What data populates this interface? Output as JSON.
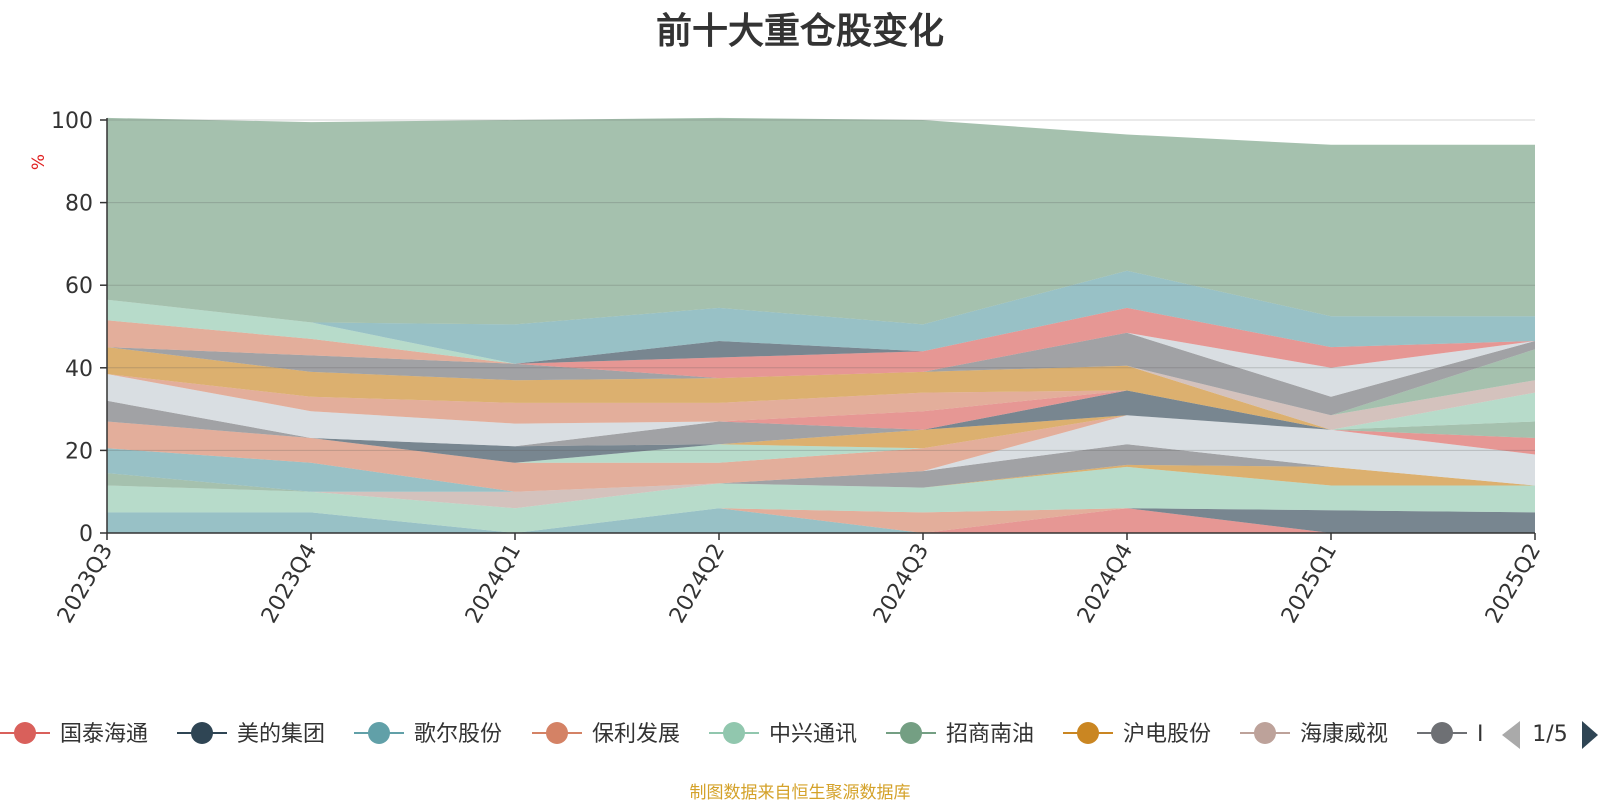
{
  "chart_data": {
    "type": "area",
    "stacked": true,
    "title": "前十大重仓股变化",
    "ylabel": "%",
    "ylim": [
      0,
      100
    ],
    "yticks": [
      0,
      20,
      40,
      60,
      80,
      100
    ],
    "grid": true,
    "legend_position": "bottom",
    "categories": [
      "2023Q3",
      "2023Q4",
      "2024Q1",
      "2024Q2",
      "2024Q3",
      "2024Q4",
      "2025Q1",
      "2025Q2"
    ],
    "series": [
      {
        "name": "国泰海通",
        "color": "#d9605b",
        "values": [
          0,
          0,
          0,
          0,
          0,
          6,
          0,
          0
        ]
      },
      {
        "name": "美的集团",
        "color": "#2f4554",
        "values": [
          0,
          0,
          0,
          0,
          0,
          0,
          5.5,
          5
        ]
      },
      {
        "name": "歌尔股份",
        "color": "#61a0a8",
        "values": [
          5,
          5,
          0,
          6,
          0,
          0,
          0,
          0
        ]
      },
      {
        "name": "保利发展",
        "color": "#d48265",
        "values": [
          0,
          0,
          0,
          0,
          5,
          0,
          0,
          0
        ]
      },
      {
        "name": "中兴通讯",
        "color": "#91c7ae",
        "values": [
          6.5,
          5,
          6,
          6,
          6,
          10,
          6,
          6.5
        ]
      },
      {
        "name": "招商南油",
        "color": "#749f83",
        "values": [
          3,
          0,
          0,
          0,
          0,
          0,
          0,
          0
        ]
      },
      {
        "name": "沪电股份",
        "color": "#ca8622",
        "values": [
          0,
          0,
          0,
          0,
          0,
          0.5,
          4.5,
          0
        ]
      },
      {
        "name": "海康威视",
        "color": "#bda29a",
        "values": [
          0,
          0,
          4,
          0,
          0,
          0,
          0,
          0
        ]
      },
      {
        "name": "",
        "color": "#6e7074",
        "values": [
          0,
          0,
          0,
          0,
          4,
          5,
          0,
          0
        ]
      },
      {
        "name": "",
        "color": "#546570",
        "values": [
          0,
          0,
          0,
          0,
          0,
          0,
          0,
          0
        ]
      },
      {
        "name": "",
        "color": "#c4ccd3",
        "values": [
          0,
          0,
          0,
          0,
          0,
          7,
          9,
          7.5
        ]
      },
      {
        "name": "",
        "color": "#61a0a8",
        "values": [
          6,
          7,
          0,
          0,
          0,
          0,
          0,
          0
        ]
      },
      {
        "name": "",
        "color": "#d48265",
        "values": [
          6.5,
          6,
          7,
          5,
          5.5,
          0,
          0,
          0
        ]
      },
      {
        "name": "",
        "color": "#91c7ae",
        "values": [
          0,
          0,
          0,
          4.5,
          0,
          0,
          0,
          0
        ]
      },
      {
        "name": "",
        "color": "#ca8622",
        "values": [
          0,
          0,
          0,
          0,
          4.5,
          0,
          0,
          0
        ]
      },
      {
        "name": "",
        "color": "#2f4554",
        "values": [
          0,
          0,
          4,
          0,
          0,
          6,
          0,
          0
        ]
      },
      {
        "name": "",
        "color": "#6e7074",
        "values": [
          5,
          0,
          0,
          5.5,
          0,
          0,
          0,
          0
        ]
      },
      {
        "name": "",
        "color": "#d9605b",
        "values": [
          0,
          0,
          0,
          0,
          4.5,
          0,
          0,
          4
        ]
      },
      {
        "name": "",
        "color": "#749f83",
        "values": [
          0,
          0,
          0,
          0,
          0,
          0,
          0,
          4
        ]
      },
      {
        "name": "",
        "color": "#91c7ae",
        "values": [
          0,
          0,
          0,
          0,
          0,
          0,
          0,
          7
        ]
      },
      {
        "name": "",
        "color": "#c4ccd3",
        "values": [
          6.5,
          6.5,
          5.5,
          0,
          0,
          0,
          0,
          0
        ]
      },
      {
        "name": "",
        "color": "#d48265",
        "values": [
          0,
          3.5,
          5,
          4.5,
          4.5,
          0,
          0,
          0
        ]
      },
      {
        "name": "",
        "color": "#ca8622",
        "values": [
          6.5,
          6,
          5.5,
          6,
          5,
          6,
          0,
          0
        ]
      },
      {
        "name": "",
        "color": "#bda29a",
        "values": [
          0,
          0,
          0,
          0,
          0,
          0,
          3.5,
          3
        ]
      },
      {
        "name": "",
        "color": "#749f83",
        "values": [
          0,
          0,
          0,
          0,
          0,
          0,
          0,
          7.5
        ]
      },
      {
        "name": "",
        "color": "#6e7074",
        "values": [
          0,
          4,
          4,
          0,
          0,
          8,
          4.5,
          2
        ]
      },
      {
        "name": "",
        "color": "#c4ccd3",
        "values": [
          0,
          0,
          0,
          0,
          0,
          0,
          7,
          0
        ]
      },
      {
        "name": "",
        "color": "#d9605b",
        "values": [
          0,
          0,
          0,
          5,
          5,
          6,
          5,
          0
        ]
      },
      {
        "name": "",
        "color": "#2f4554",
        "values": [
          0,
          0,
          0,
          4,
          0,
          0,
          0,
          0
        ]
      },
      {
        "name": "",
        "color": "#d48265",
        "values": [
          6.5,
          4,
          0,
          0,
          0,
          0,
          0,
          0
        ]
      },
      {
        "name": "",
        "color": "#91c7ae",
        "values": [
          5,
          4,
          0,
          0,
          0,
          0,
          0,
          0
        ]
      },
      {
        "name": "",
        "color": "#61a0a8",
        "values": [
          0,
          0,
          9.5,
          8,
          6.5,
          9,
          7.5,
          6
        ]
      },
      {
        "name": "",
        "color": "#749f83",
        "values": [
          44,
          48.5,
          49.5,
          46,
          49.5,
          33,
          41.5,
          41.5
        ]
      }
    ]
  },
  "legend": {
    "items": [
      {
        "label": "国泰海通",
        "color": "#d9605b"
      },
      {
        "label": "美的集团",
        "color": "#2f4554"
      },
      {
        "label": "歌尔股份",
        "color": "#61a0a8"
      },
      {
        "label": "保利发展",
        "color": "#d48265"
      },
      {
        "label": "中兴通讯",
        "color": "#91c7ae"
      },
      {
        "label": "招商南油",
        "color": "#749f83"
      },
      {
        "label": "沪电股份",
        "color": "#ca8622"
      },
      {
        "label": "海康威视",
        "color": "#bda29a"
      },
      {
        "label": "I",
        "color": "#6e7074"
      }
    ],
    "page": "1/5"
  },
  "footnote": "制图数据来自恒生聚源数据库"
}
